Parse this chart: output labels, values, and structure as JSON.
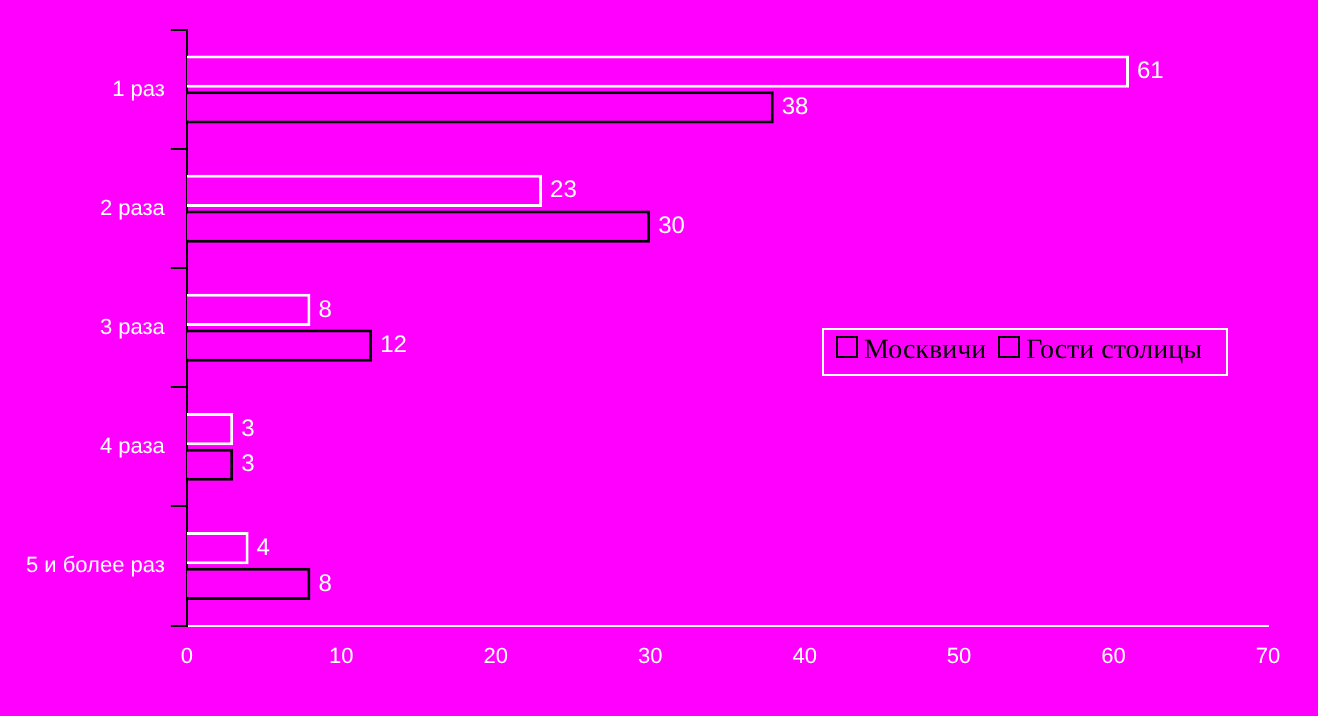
{
  "chart_data": {
    "type": "bar",
    "orientation": "horizontal",
    "categories": [
      "1 раз",
      "2 раза",
      "3 раза",
      "4 раза",
      "5 и более раз"
    ],
    "series": [
      {
        "name": "Москвичи",
        "color": "#ff00ff",
        "values": [
          61,
          23,
          8,
          3,
          4
        ]
      },
      {
        "name": "Гости столицы",
        "color": "#ff00ff",
        "values": [
          38,
          30,
          12,
          3,
          8
        ]
      }
    ],
    "xlim": [
      0,
      70
    ],
    "xticks": [
      0,
      10,
      20,
      30,
      40,
      50,
      60,
      70
    ],
    "grid": false,
    "legend": "right",
    "data_labels": true
  }
}
